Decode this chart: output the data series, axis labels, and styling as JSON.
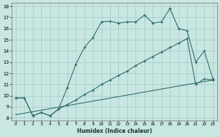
{
  "xlabel": "Humidex (Indice chaleur)",
  "xlim": [
    -0.5,
    23.5
  ],
  "ylim": [
    7.8,
    18.3
  ],
  "xticks": [
    0,
    1,
    2,
    3,
    4,
    5,
    6,
    7,
    8,
    9,
    10,
    11,
    12,
    13,
    14,
    15,
    16,
    17,
    18,
    19,
    20,
    21,
    22,
    23
  ],
  "yticks": [
    8,
    9,
    10,
    11,
    12,
    13,
    14,
    15,
    16,
    17,
    18
  ],
  "bg_color": "#c8e6e2",
  "grid_color": "#a8ceca",
  "line_color": "#2a6b60",
  "line1_x": [
    0,
    1,
    2,
    3,
    4,
    5,
    6,
    7,
    8,
    9,
    10,
    11,
    12,
    13,
    14,
    15,
    16,
    17,
    18,
    19,
    20,
    21,
    22,
    23
  ],
  "line1_y": [
    9.8,
    9.8,
    8.2,
    8.5,
    8.2,
    8.8,
    10.7,
    12.8,
    14.3,
    15.2,
    16.6,
    16.65,
    16.5,
    16.6,
    16.6,
    17.2,
    16.5,
    16.6,
    17.8,
    16.0,
    15.8,
    13.0,
    14.0,
    11.5
  ],
  "line2_x": [
    0,
    1,
    2,
    3,
    4,
    5,
    6,
    7,
    8,
    9,
    10,
    11,
    12,
    13,
    14,
    15,
    16,
    17,
    18,
    19,
    20,
    21,
    22,
    23
  ],
  "line2_y": [
    9.8,
    9.8,
    8.2,
    8.5,
    8.2,
    8.8,
    9.2,
    9.6,
    10.1,
    10.5,
    11.0,
    11.4,
    11.8,
    12.2,
    12.7,
    13.1,
    13.5,
    13.9,
    14.3,
    14.7,
    15.1,
    11.0,
    11.5,
    11.4
  ],
  "line3_x": [
    0,
    23
  ],
  "line3_y": [
    8.3,
    11.4
  ]
}
